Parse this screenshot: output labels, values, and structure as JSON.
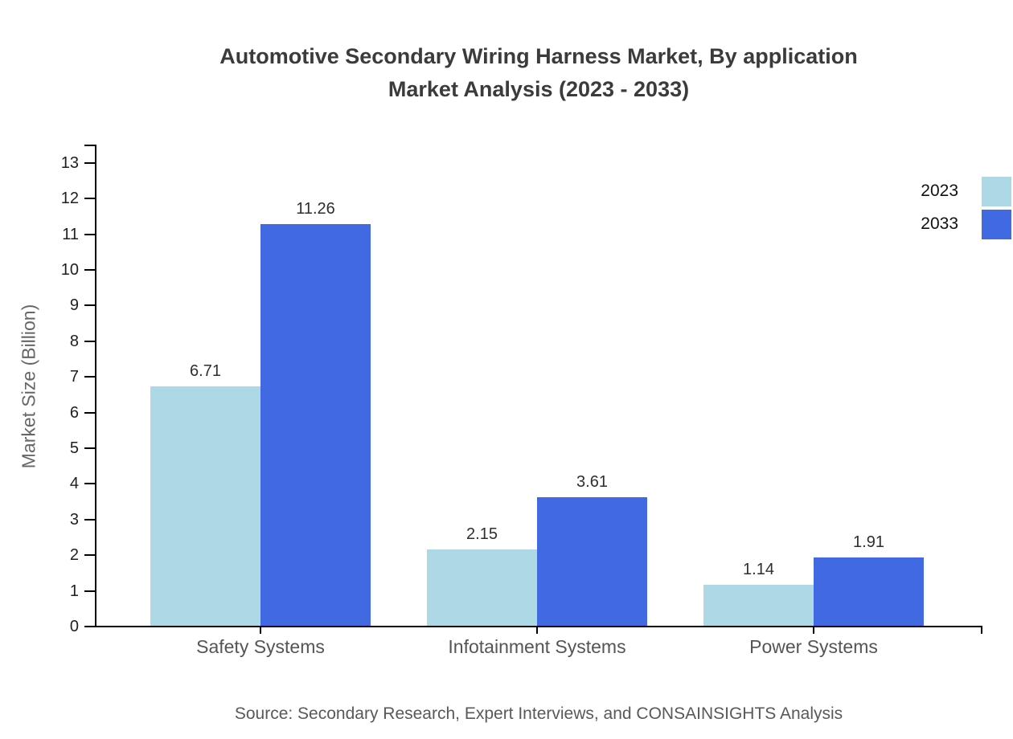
{
  "title": {
    "line1": "Automotive Secondary Wiring Harness Market, By application",
    "line2": "Market Analysis (2023 - 2033)"
  },
  "source_note": "Source: Secondary Research, Expert Interviews, and CONSAINSIGHTS Analysis",
  "legend": {
    "items": [
      {
        "label": "2023",
        "color": "#add8e6"
      },
      {
        "label": "2033",
        "color": "#4169e1"
      }
    ]
  },
  "colors": {
    "bar_2023": "#add8e6",
    "bar_2033": "#4169e1",
    "axis": "#000000",
    "title_text": "#3b3b3b",
    "category_text": "#555555",
    "value_text": "#2e2e2e",
    "tick_text": "#1f1f1f",
    "source_text": "#595959"
  },
  "chart_data": {
    "type": "bar",
    "title": "Automotive Secondary Wiring Harness Market, By application Market Analysis (2023 - 2033)",
    "categories": [
      "Safety Systems",
      "Infotainment Systems",
      "Power Systems"
    ],
    "series": [
      {
        "name": "2023",
        "color": "#add8e6",
        "values": [
          6.71,
          2.15,
          1.14
        ]
      },
      {
        "name": "2033",
        "color": "#4169e1",
        "values": [
          11.26,
          3.61,
          1.91
        ]
      }
    ],
    "xlabel": "",
    "ylabel": "Market Size (Billion)",
    "ylim": [
      0,
      13
    ],
    "yticks": [
      0,
      1,
      2,
      3,
      4,
      5,
      6,
      7,
      8,
      9,
      10,
      11,
      12,
      13
    ],
    "grid": false,
    "legend_position": "top-right",
    "value_labels": true,
    "value_label_format": "0.00"
  }
}
